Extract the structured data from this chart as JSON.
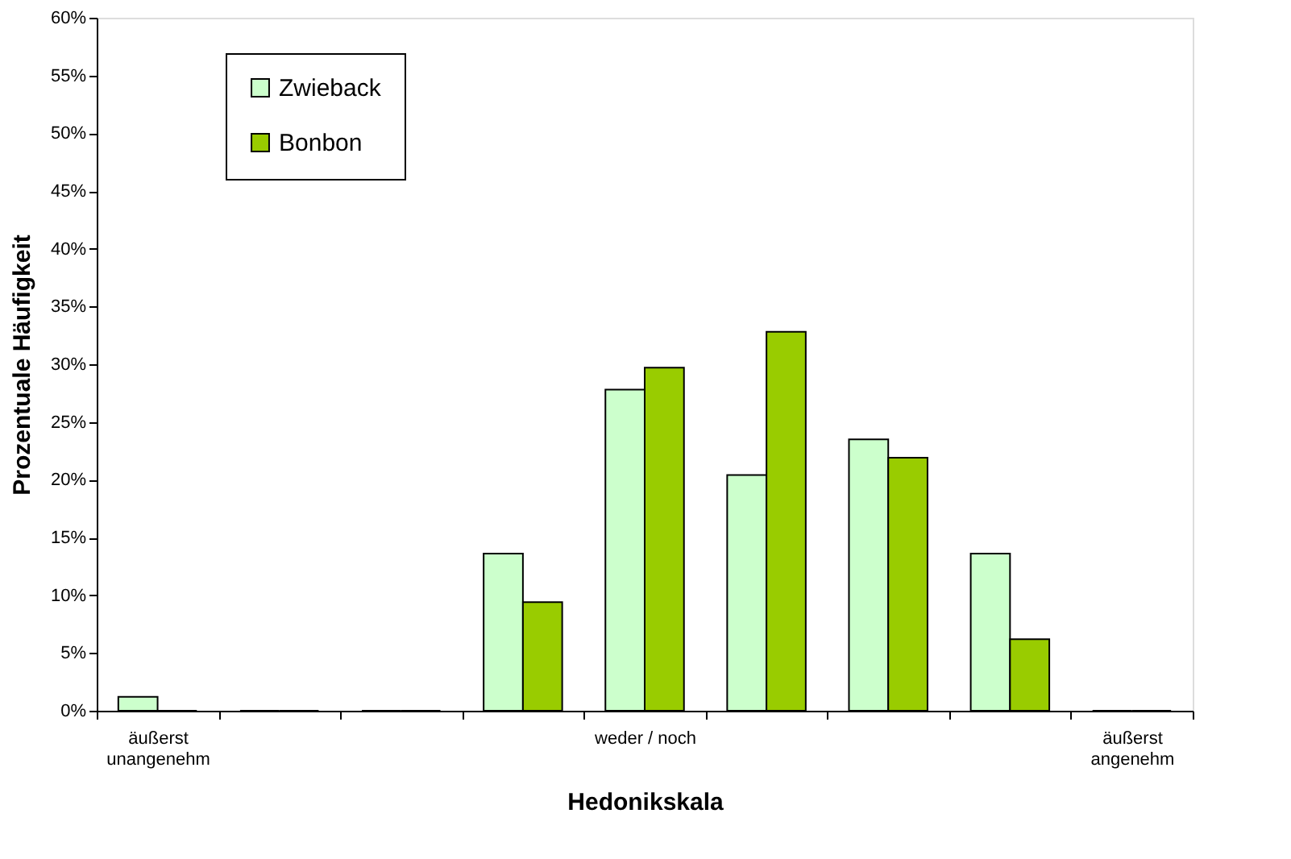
{
  "chart_data": {
    "type": "bar",
    "xlabel": "Hedonikskala",
    "ylabel": "Prozentuale Häufigkeit",
    "categories": [
      "äußerst\nunangenehm",
      null,
      null,
      null,
      "weder / noch",
      null,
      null,
      null,
      "äußerst\nangenehm"
    ],
    "series": [
      {
        "name": "Zwieback",
        "color": "#ccffcc",
        "values": [
          1.2,
          0,
          0,
          13.6,
          27.8,
          20.4,
          23.5,
          13.6,
          0
        ]
      },
      {
        "name": "Bonbon",
        "color": "#99cc00",
        "values": [
          0,
          0,
          0,
          9.4,
          29.7,
          32.8,
          21.9,
          6.2,
          0
        ]
      }
    ],
    "ylim": [
      0,
      60
    ],
    "yticks": [
      {
        "value": 0,
        "label": "0%"
      },
      {
        "value": 5,
        "label": "5%"
      },
      {
        "value": 10,
        "label": "10%"
      },
      {
        "value": 15,
        "label": "15%"
      },
      {
        "value": 20,
        "label": "20%"
      },
      {
        "value": 25,
        "label": "25%"
      },
      {
        "value": 30,
        "label": "30%"
      },
      {
        "value": 35,
        "label": "35%"
      },
      {
        "value": 40,
        "label": "40%"
      },
      {
        "value": 45,
        "label": "45%"
      },
      {
        "value": 50,
        "label": "50%"
      },
      {
        "value": 55,
        "label": "55%"
      },
      {
        "value": 60,
        "label": "60%"
      }
    ],
    "grid": false,
    "legend": "top left"
  }
}
